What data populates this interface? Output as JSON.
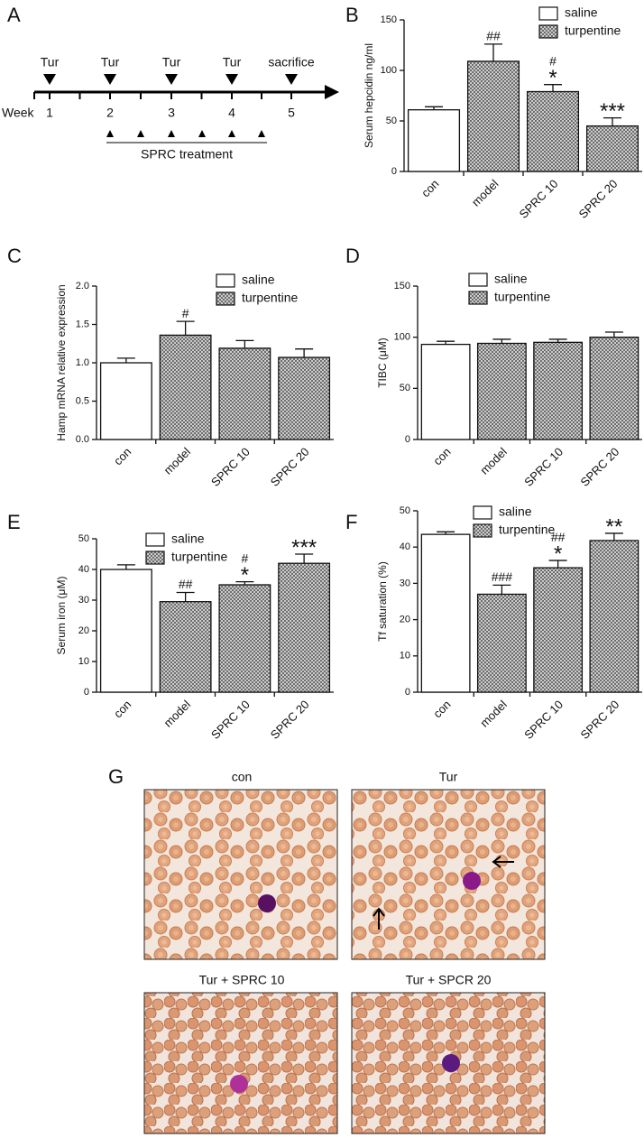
{
  "timeline": {
    "panel": "A",
    "tur_labels": [
      "Tur",
      "Tur",
      "Tur",
      "Tur"
    ],
    "end_label": "sacrifice",
    "week_label": "Week",
    "weeks": [
      1,
      2,
      3,
      4,
      5
    ],
    "treatment": "SPRC treatment"
  },
  "chart_data": [
    {
      "panel": "B",
      "type": "bar",
      "ylabel": "Serum hepcidin ng/ml",
      "categories": [
        "con",
        "model",
        "SPRC 10",
        "SPRC 20"
      ],
      "series": [
        {
          "name": "saline",
          "color": "#ffffff",
          "values": [
            61,
            null,
            null,
            null
          ],
          "errors": [
            3,
            null,
            null,
            null
          ]
        },
        {
          "name": "turpentine",
          "color": "#5a5a5a",
          "pattern": "crosshatch",
          "values": [
            null,
            109,
            79,
            45
          ],
          "errors": [
            null,
            17,
            7,
            8
          ]
        }
      ],
      "annotations": [
        null,
        [
          "##"
        ],
        [
          "#",
          "*"
        ],
        [
          "***"
        ]
      ],
      "ylim": [
        0,
        150
      ],
      "yticks": [
        0,
        50,
        100,
        150
      ],
      "legend": "upper right"
    },
    {
      "panel": "C",
      "type": "bar",
      "ylabel": "Hamp mRNA relative expression",
      "categories": [
        "con",
        "model",
        "SPRC 10",
        "SPRC 20"
      ],
      "series": [
        {
          "name": "saline",
          "color": "#ffffff",
          "values": [
            1.0,
            null,
            null,
            null
          ],
          "errors": [
            0.06,
            null,
            null,
            null
          ]
        },
        {
          "name": "turpentine",
          "color": "#5a5a5a",
          "pattern": "crosshatch",
          "values": [
            null,
            1.36,
            1.19,
            1.07
          ],
          "errors": [
            null,
            0.18,
            0.1,
            0.11
          ]
        }
      ],
      "annotations": [
        null,
        [
          "#"
        ],
        null,
        null
      ],
      "ylim": [
        0,
        2
      ],
      "yticks": [
        {
          "value": 0,
          "label": "0.0"
        },
        {
          "value": 0.5,
          "label": "0.5"
        },
        {
          "value": 1,
          "label": "1.0"
        },
        {
          "value": 1.5,
          "label": "1.5"
        },
        {
          "value": 2,
          "label": "2.0"
        }
      ],
      "legend": "upper right"
    },
    {
      "panel": "D",
      "type": "bar",
      "ylabel": "TIBC (μM)",
      "categories": [
        "con",
        "model",
        "SPRC 10",
        "SPRC 20"
      ],
      "series": [
        {
          "name": "saline",
          "color": "#ffffff",
          "values": [
            93,
            null,
            null,
            null
          ],
          "errors": [
            3,
            null,
            null,
            null
          ]
        },
        {
          "name": "turpentine",
          "color": "#5a5a5a",
          "pattern": "crosshatch",
          "values": [
            null,
            94,
            95,
            100
          ],
          "errors": [
            null,
            4,
            3,
            5
          ]
        }
      ],
      "annotations": [
        null,
        null,
        null,
        null
      ],
      "ylim": [
        0,
        150
      ],
      "yticks": [
        0,
        50,
        100,
        150
      ],
      "legend": "upper right"
    },
    {
      "panel": "E",
      "type": "bar",
      "ylabel": "Serum iron (μM)",
      "categories": [
        "con",
        "model",
        "SPRC 10",
        "SPRC 20"
      ],
      "series": [
        {
          "name": "saline",
          "color": "#ffffff",
          "values": [
            40,
            null,
            null,
            null
          ],
          "errors": [
            1.5,
            null,
            null,
            null
          ]
        },
        {
          "name": "turpentine",
          "color": "#5a5a5a",
          "pattern": "crosshatch",
          "values": [
            null,
            29.5,
            35,
            42
          ],
          "errors": [
            null,
            3,
            1,
            3
          ]
        }
      ],
      "annotations": [
        null,
        [
          "##"
        ],
        [
          "#",
          "*"
        ],
        [
          "***"
        ]
      ],
      "ylim": [
        0,
        50
      ],
      "yticks": [
        0,
        10,
        20,
        30,
        40,
        50
      ],
      "legend": "upper right"
    },
    {
      "panel": "F",
      "type": "bar",
      "ylabel": "Tf saturation (%)",
      "categories": [
        "con",
        "model",
        "SPRC 10",
        "SPRC 20"
      ],
      "series": [
        {
          "name": "saline",
          "color": "#ffffff",
          "values": [
            43.5,
            null,
            null,
            null
          ],
          "errors": [
            0.7,
            null,
            null,
            null
          ]
        },
        {
          "name": "turpentine",
          "color": "#5a5a5a",
          "pattern": "crosshatch",
          "values": [
            null,
            27,
            34.3,
            41.8
          ],
          "errors": [
            null,
            2.5,
            2,
            2
          ]
        }
      ],
      "annotations": [
        null,
        [
          "###"
        ],
        [
          "##",
          "*"
        ],
        [
          "**"
        ]
      ],
      "ylim": [
        0,
        50
      ],
      "yticks": [
        0,
        10,
        20,
        30,
        40,
        50
      ],
      "legend": "upper right"
    }
  ],
  "micrographs": {
    "panel": "G",
    "titles": [
      "con",
      "Tur",
      "Tur + SPRC 10",
      "Tur + SPCR 20"
    ]
  }
}
